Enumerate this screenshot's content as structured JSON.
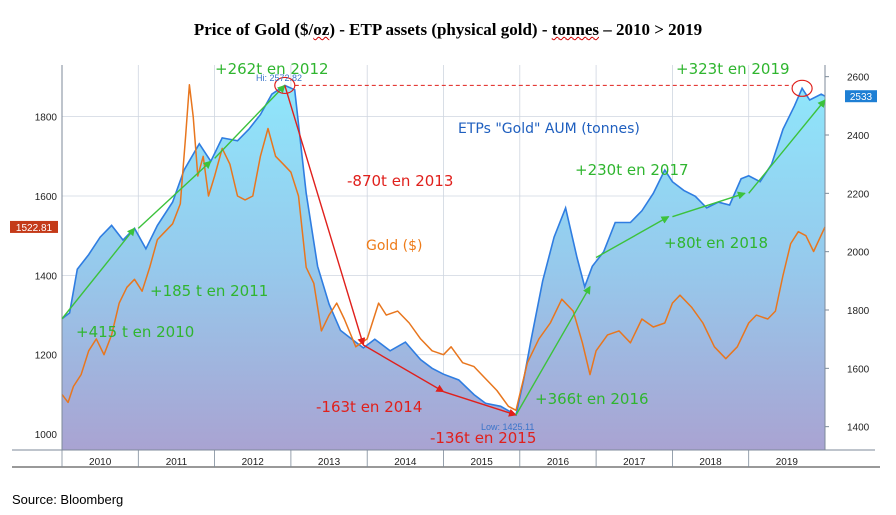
{
  "title_main": "Price of Gold ($/",
  "title_oz": "oz",
  "title_mid": ") - ETP assets (physical gold) - ",
  "title_tonnes": "tonnes",
  "title_end": " – 2010 > 2019",
  "source": "Source: Bloomberg",
  "colors": {
    "etp_line": "#2f7de1",
    "etp_fill_top": "#8fdcf5",
    "etp_fill_bottom": "#a8a0cf",
    "gold_line": "#e8761e",
    "up_arrow": "#3cc23c",
    "down_arrow": "#e0201c",
    "label_bg": "#c43a19",
    "label_bg2": "#1e7fd4"
  },
  "labels": {
    "etp_series": "ETPs \"Gold\" AUM (tonnes)",
    "gold_series": "Gold ($)",
    "hi": "Hi: 2572.82",
    "low": "Low: 1425.11",
    "last_gold": "1522.81",
    "last_etp": "2533"
  },
  "annotations_up": [
    "+415 t en 2010",
    "+185 t en 2011",
    "+262t en 2012",
    "+366t en 2016",
    "+230t en 2017",
    "+80t en 2018",
    "+323t en 2019"
  ],
  "annotations_down": [
    "-870t en 2013",
    "-163t en 2014",
    "-136t en 2015"
  ],
  "chart_data": {
    "type": "line",
    "title": "Price of Gold ($/oz) - ETP assets (physical gold) - tonnes – 2010 > 2019",
    "x_categories": [
      "2010",
      "2011",
      "2012",
      "2013",
      "2014",
      "2015",
      "2016",
      "2017",
      "2018",
      "2019"
    ],
    "y_left": {
      "label": "",
      "ylim": [
        960,
        1930
      ],
      "ticks": [
        1000,
        1200,
        1400,
        1600,
        1800
      ]
    },
    "y_right": {
      "label": "",
      "ylim": [
        1320,
        2640
      ],
      "ticks": [
        1400,
        1600,
        1800,
        2000,
        2200,
        2400,
        2600
      ]
    },
    "grid": true,
    "series": [
      {
        "name": "ETPs \"Gold\" AUM (tonnes)",
        "axis": "right",
        "x": [
          2010.0,
          2010.1,
          2010.2,
          2010.35,
          2010.5,
          2010.65,
          2010.8,
          2010.95,
          2011.1,
          2011.25,
          2011.45,
          2011.6,
          2011.8,
          2011.95,
          2012.1,
          2012.3,
          2012.45,
          2012.6,
          2012.75,
          2012.92,
          2013.05,
          2013.2,
          2013.35,
          2013.5,
          2013.65,
          2013.8,
          2013.95,
          2014.1,
          2014.3,
          2014.5,
          2014.7,
          2014.85,
          2015.0,
          2015.2,
          2015.4,
          2015.55,
          2015.75,
          2015.95,
          2016.05,
          2016.15,
          2016.3,
          2016.45,
          2016.6,
          2016.75,
          2016.85,
          2016.95,
          2017.1,
          2017.25,
          2017.45,
          2017.6,
          2017.75,
          2017.9,
          2018.0,
          2018.15,
          2018.3,
          2018.45,
          2018.6,
          2018.75,
          2018.9,
          2019.0,
          2019.15,
          2019.3,
          2019.45,
          2019.6,
          2019.7,
          2019.8,
          2019.95,
          2020.0
        ],
        "values": [
          1770,
          1790,
          1940,
          1990,
          2050,
          2090,
          2040,
          2080,
          2010,
          2090,
          2170,
          2280,
          2370,
          2310,
          2390,
          2380,
          2420,
          2470,
          2540,
          2570,
          2555,
          2200,
          1950,
          1820,
          1730,
          1700,
          1670,
          1700,
          1660,
          1690,
          1630,
          1600,
          1580,
          1560,
          1510,
          1480,
          1470,
          1440,
          1560,
          1700,
          1900,
          2050,
          2150,
          1980,
          1880,
          1950,
          2000,
          2100,
          2100,
          2140,
          2200,
          2280,
          2240,
          2210,
          2190,
          2150,
          2170,
          2160,
          2250,
          2260,
          2240,
          2300,
          2420,
          2500,
          2560,
          2520,
          2540,
          2533
        ]
      },
      {
        "name": "Gold ($)",
        "axis": "left",
        "x": [
          2010.0,
          2010.08,
          2010.15,
          2010.25,
          2010.35,
          2010.45,
          2010.55,
          2010.65,
          2010.75,
          2010.85,
          2010.95,
          2011.05,
          2011.15,
          2011.25,
          2011.35,
          2011.45,
          2011.55,
          2011.62,
          2011.67,
          2011.72,
          2011.78,
          2011.85,
          2011.92,
          2012.0,
          2012.1,
          2012.2,
          2012.3,
          2012.4,
          2012.5,
          2012.6,
          2012.7,
          2012.8,
          2012.9,
          2013.0,
          2013.1,
          2013.2,
          2013.3,
          2013.4,
          2013.5,
          2013.6,
          2013.7,
          2013.85,
          2014.0,
          2014.15,
          2014.25,
          2014.4,
          2014.55,
          2014.7,
          2014.85,
          2015.0,
          2015.1,
          2015.25,
          2015.4,
          2015.55,
          2015.7,
          2015.85,
          2015.95,
          2016.1,
          2016.25,
          2016.4,
          2016.55,
          2016.7,
          2016.82,
          2016.92,
          2017.0,
          2017.15,
          2017.3,
          2017.45,
          2017.6,
          2017.75,
          2017.9,
          2018.0,
          2018.1,
          2018.25,
          2018.4,
          2018.55,
          2018.7,
          2018.85,
          2019.0,
          2019.1,
          2019.25,
          2019.35,
          2019.45,
          2019.55,
          2019.65,
          2019.75,
          2019.85,
          2020.0
        ],
        "values": [
          1100,
          1080,
          1120,
          1150,
          1210,
          1240,
          1200,
          1250,
          1330,
          1370,
          1390,
          1360,
          1420,
          1490,
          1510,
          1530,
          1580,
          1750,
          1880,
          1800,
          1650,
          1700,
          1600,
          1650,
          1720,
          1680,
          1600,
          1590,
          1600,
          1700,
          1770,
          1700,
          1680,
          1660,
          1600,
          1420,
          1380,
          1260,
          1300,
          1330,
          1290,
          1220,
          1240,
          1330,
          1300,
          1310,
          1280,
          1240,
          1210,
          1200,
          1220,
          1180,
          1170,
          1140,
          1110,
          1070,
          1060,
          1180,
          1240,
          1280,
          1340,
          1310,
          1230,
          1150,
          1210,
          1250,
          1260,
          1230,
          1290,
          1270,
          1280,
          1330,
          1350,
          1320,
          1280,
          1220,
          1190,
          1220,
          1280,
          1300,
          1290,
          1310,
          1400,
          1480,
          1510,
          1500,
          1460,
          1522
        ]
      }
    ],
    "annotations": [
      {
        "text": "+415 t en 2010",
        "from": [
          2010.0,
          1770
        ],
        "to": [
          2010.95,
          2080
        ],
        "kind": "up"
      },
      {
        "text": "+185 t en 2011",
        "from": [
          2011.0,
          2080
        ],
        "to": [
          2011.95,
          2310
        ],
        "kind": "up"
      },
      {
        "text": "+262t en 2012",
        "from": [
          2012.0,
          2320
        ],
        "to": [
          2012.92,
          2570
        ],
        "kind": "up"
      },
      {
        "text": "-870t en 2013",
        "from": [
          2012.92,
          2570
        ],
        "to": [
          2013.95,
          1680
        ],
        "kind": "down"
      },
      {
        "text": "-163t en 2014",
        "from": [
          2013.95,
          1680
        ],
        "to": [
          2015.0,
          1520
        ],
        "kind": "down"
      },
      {
        "text": "-136t en 2015",
        "from": [
          2015.0,
          1520
        ],
        "to": [
          2015.95,
          1440
        ],
        "kind": "down"
      },
      {
        "text": "+366t en 2016",
        "from": [
          2015.95,
          1440
        ],
        "to": [
          2016.92,
          1880
        ],
        "kind": "up"
      },
      {
        "text": "+230t en 2017",
        "from": [
          2017.0,
          1980
        ],
        "to": [
          2017.95,
          2120
        ],
        "kind": "up"
      },
      {
        "text": "+80t en 2018",
        "from": [
          2018.0,
          2120
        ],
        "to": [
          2018.95,
          2200
        ],
        "kind": "up"
      },
      {
        "text": "+323t en 2019",
        "from": [
          2019.0,
          2200
        ],
        "to": [
          2020.0,
          2520
        ],
        "kind": "up"
      }
    ]
  }
}
